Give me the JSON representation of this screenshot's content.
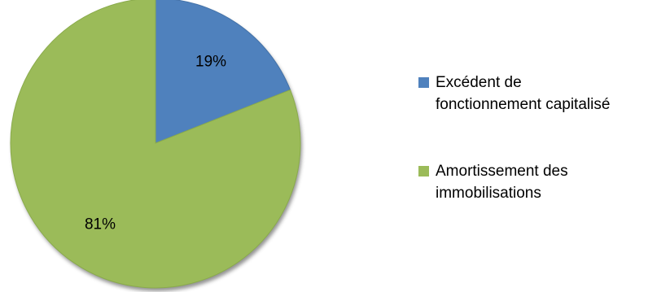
{
  "chart_data": {
    "type": "pie",
    "title": "",
    "slices": [
      {
        "name": "Excédent de fonctionnement capitalisé",
        "value": 19,
        "label": "19%",
        "color": "#4f81bd",
        "border": "#4472a8"
      },
      {
        "name": "Amortissement des immobilisations",
        "value": 81,
        "label": "81%",
        "color": "#9bbb59",
        "border": "#8aab4c"
      }
    ],
    "legend_position": "right",
    "legend": [
      {
        "lines": [
          "Excédent de",
          "fonctionnement capitalisé"
        ],
        "color": "#4f81bd"
      },
      {
        "lines": [
          "Amortissement des",
          "immobilisations"
        ],
        "color": "#9bbb59"
      }
    ]
  }
}
